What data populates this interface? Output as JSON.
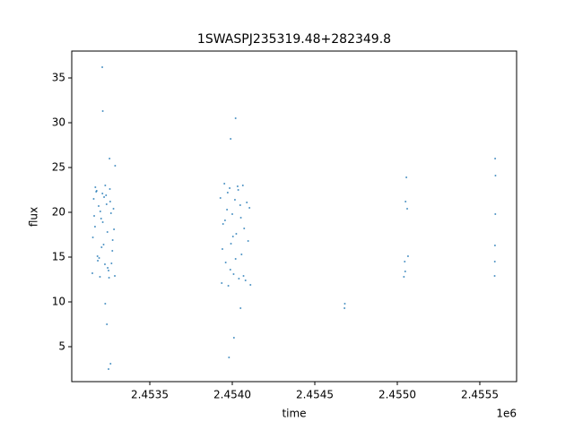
{
  "chart_data": {
    "type": "scatter",
    "title": "1SWASPJ235319.48+282349.8",
    "xlabel": "time",
    "ylabel": "flux",
    "x_offset_label": "1e6",
    "color": "#1f77b4",
    "xlim": [
      2453027,
      2455723
    ],
    "ylim": [
      1.1,
      38
    ],
    "xticks": [
      {
        "value": 2453500,
        "label": "2.4535"
      },
      {
        "value": 2454000,
        "label": "2.4540"
      },
      {
        "value": 2454500,
        "label": "2.4545"
      },
      {
        "value": 2455000,
        "label": "2.4550"
      },
      {
        "value": 2455500,
        "label": "2.4555"
      }
    ],
    "yticks": [
      5,
      10,
      15,
      20,
      25,
      30,
      35
    ],
    "x": [
      2453152,
      2453160,
      2453168,
      2453175,
      2453183,
      2453190,
      2453198,
      2453205,
      2453213,
      2453220,
      2453228,
      2453235,
      2453243,
      2453250,
      2453258,
      2453265,
      2453273,
      2453280,
      2453288,
      2453155,
      2453170,
      2453185,
      2453200,
      2453215,
      2453230,
      2453245,
      2453260,
      2453275,
      2453163,
      2453193,
      2453223,
      2453253,
      2453283,
      2453178,
      2453208,
      2453238,
      2453268,
      2453212,
      2453262,
      2453256,
      2453215,
      2453240,
      2453250,
      2453230,
      2453290,
      2453928,
      2453936,
      2453944,
      2453952,
      2453960,
      2453968,
      2453976,
      2453984,
      2453992,
      2454000,
      2454008,
      2454016,
      2454024,
      2454032,
      2454040,
      2454048,
      2454056,
      2454064,
      2454072,
      2454080,
      2454088,
      2454096,
      2454104,
      2454110,
      2453940,
      2453956,
      2453972,
      2453988,
      2454004,
      2454020,
      2454036,
      2454052,
      2454068,
      2454020,
      2453990,
      2454010,
      2453980,
      2454050,
      2454680,
      2454682,
      2455040,
      2455045,
      2455050,
      2455055,
      2455060,
      2455065,
      2455048,
      2455590,
      2455592,
      2455594,
      2455595,
      2455593,
      2455591
    ],
    "values": [
      13.2,
      21.5,
      18.4,
      22.3,
      15.1,
      20.7,
      12.8,
      19.3,
      22.1,
      16.4,
      14.2,
      21.9,
      17.8,
      13.5,
      22.6,
      19.9,
      15.7,
      20.4,
      12.9,
      17.2,
      22.8,
      14.6,
      20.1,
      18.9,
      23.0,
      13.8,
      21.2,
      16.9,
      19.6,
      14.9,
      21.7,
      12.7,
      18.1,
      22.4,
      16.1,
      20.9,
      14.3,
      36.2,
      3.1,
      26.0,
      31.3,
      7.5,
      2.5,
      9.8,
      25.2,
      21.6,
      12.1,
      18.7,
      23.2,
      14.4,
      20.3,
      11.8,
      22.7,
      16.5,
      19.8,
      13.1,
      21.4,
      17.6,
      22.9,
      12.6,
      20.8,
      15.3,
      23.0,
      18.2,
      12.4,
      21.1,
      16.8,
      20.5,
      11.9,
      15.9,
      19.1,
      22.2,
      13.6,
      17.3,
      14.8,
      22.5,
      19.4,
      12.9,
      30.5,
      28.2,
      6.0,
      3.8,
      9.3,
      9.3,
      9.8,
      12.8,
      14.5,
      21.2,
      23.9,
      20.4,
      15.1,
      13.4,
      12.9,
      16.3,
      19.8,
      24.1,
      26.0,
      14.5
    ]
  }
}
